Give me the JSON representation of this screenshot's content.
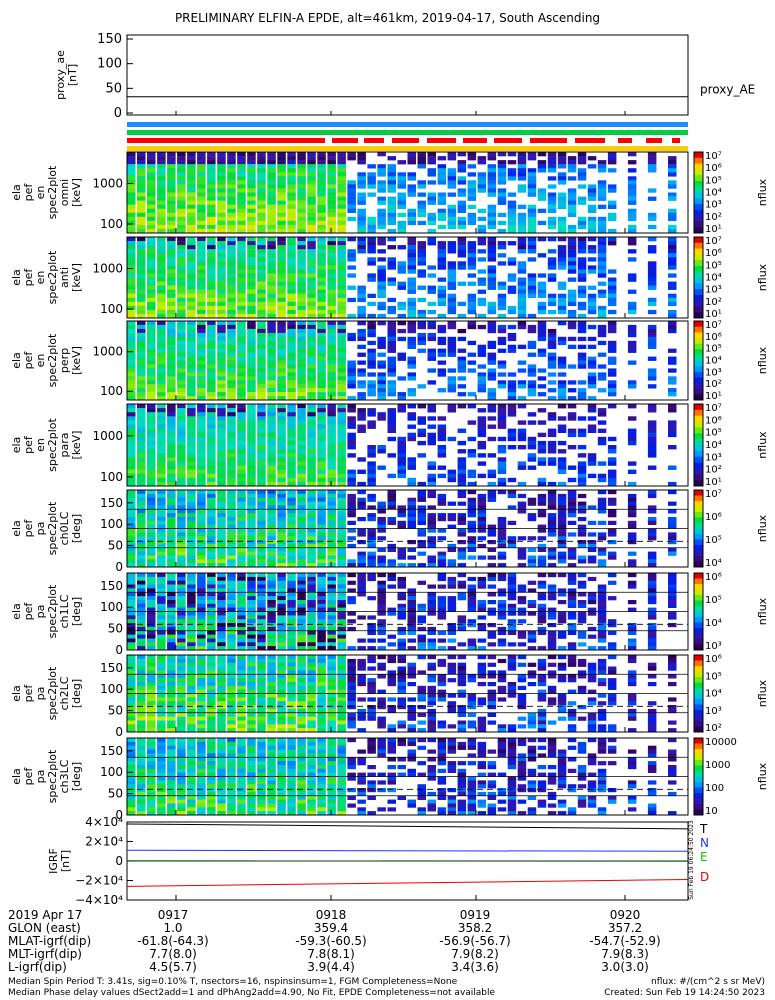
{
  "title": "PRELIMINARY ELFIN-A EPDE, alt=461km, 2019-04-17, South Ascending",
  "panels": {
    "proxy_ae": {
      "ylabel_lines": [
        "proxy_ae",
        "[nT]"
      ],
      "ticks": [
        "150",
        "100",
        "50",
        "0"
      ],
      "legend": "proxy_AE"
    },
    "spec_en": [
      {
        "ylabel_lines": [
          "ela",
          "pef",
          "en",
          "spec2plot",
          "omni",
          "[keV]"
        ]
      },
      {
        "ylabel_lines": [
          "ela",
          "pef",
          "en",
          "spec2plot",
          "anti",
          "[keV]"
        ]
      },
      {
        "ylabel_lines": [
          "ela",
          "pef",
          "en",
          "spec2plot",
          "perp",
          "[keV]"
        ]
      },
      {
        "ylabel_lines": [
          "ela",
          "pef",
          "en",
          "spec2plot",
          "para",
          "[keV]"
        ]
      }
    ],
    "energy_ticks": [
      "1000",
      "100"
    ],
    "spec_pa": [
      {
        "ylabel_lines": [
          "ela",
          "pef",
          "pa",
          "spec2plot",
          "ch0LC",
          "[deg]"
        ]
      },
      {
        "ylabel_lines": [
          "ela",
          "pef",
          "pa",
          "spec2plot",
          "ch1LC",
          "[deg]"
        ]
      },
      {
        "ylabel_lines": [
          "ela",
          "pef",
          "pa",
          "spec2plot",
          "ch2LC",
          "[deg]"
        ]
      },
      {
        "ylabel_lines": [
          "ela",
          "pef",
          "pa",
          "spec2plot",
          "ch3LC",
          "[deg]"
        ]
      }
    ],
    "pa_ticks": [
      "150",
      "100",
      "50",
      "0"
    ],
    "igrf": {
      "ylabel_lines": [
        "IGRF",
        "[nT]"
      ],
      "ticks": [
        "4×10⁴",
        "2×10⁴",
        "0",
        "−2×10⁴",
        "−4×10⁴"
      ],
      "legend": [
        "T",
        "N",
        "E",
        "D"
      ],
      "legend_colors": [
        "#000000",
        "#2233ff",
        "#00cc00",
        "#ee0000"
      ]
    }
  },
  "colorbars": {
    "label": "nflux",
    "bars": [
      {
        "ticks": [
          "10⁷",
          "10⁶",
          "10⁵",
          "10⁴",
          "10³",
          "10²",
          "10¹"
        ]
      },
      {
        "ticks": [
          "10⁷",
          "10⁶",
          "10⁵",
          "10⁴",
          "10³",
          "10²",
          "10¹"
        ]
      },
      {
        "ticks": [
          "10⁷",
          "10⁶",
          "10⁵",
          "10⁴",
          "10³",
          "10²",
          "10¹"
        ]
      },
      {
        "ticks": [
          "10⁷",
          "10⁶",
          "10⁵",
          "10⁴",
          "10³",
          "10²",
          "10¹"
        ]
      },
      {
        "ticks": [
          "10⁷",
          "10⁶",
          "10⁵",
          "10⁴"
        ]
      },
      {
        "ticks": [
          "10⁶",
          "10⁵",
          "10⁴",
          "10³"
        ]
      },
      {
        "ticks": [
          "10⁶",
          "10⁵",
          "10⁴",
          "10³",
          "10²"
        ]
      },
      {
        "ticks": [
          "10000",
          "1000",
          "100",
          "10"
        ]
      }
    ]
  },
  "stamp": "Sun Feb 19 06:24:50 2023",
  "orbit_table": {
    "rows": [
      {
        "label": "2019 Apr 17",
        "values": [
          "0917",
          "0918",
          "0919",
          "0920"
        ]
      },
      {
        "label": "GLON (east)",
        "values": [
          "1.0",
          "359.4",
          "358.2",
          "357.2"
        ]
      },
      {
        "label": "MLAT-igrf(dip)",
        "values": [
          "-61.8(-64.3)",
          "-59.3(-60.5)",
          "-56.9(-56.7)",
          "-54.7(-52.9)"
        ]
      },
      {
        "label": "MLT-igrf(dip)",
        "values": [
          "7.7(8.0)",
          "7.8(8.1)",
          "7.9(8.2)",
          "7.9(8.3)"
        ]
      },
      {
        "label": "L-igrf(dip)",
        "values": [
          "4.5(5.7)",
          "3.9(4.4)",
          "3.4(3.6)",
          "3.0(3.0)"
        ]
      }
    ]
  },
  "footer": {
    "line1": "Median Spin Period T: 3.41s, sig=0.10% T, nsectors=16, nspinsinsum=1, FGM Completeness=None",
    "line2": "Median Phase delay values dSect2add=1 and dPhAng2add=4.90, No Fit, EPDE Completeness=not available",
    "units": "nflux: #/(cm^2 s sr MeV)",
    "created": "Created: Sun Feb 19 14:24:50 2023"
  },
  "chart_data": {
    "type": "heatmap",
    "x_ticks": [
      "0917",
      "0918",
      "0919",
      "0920"
    ],
    "proxy_ae": {
      "ylim": [
        0,
        150
      ],
      "value": 33
    },
    "energy_range_keV": [
      60,
      6000
    ],
    "pitch_angle_range_deg": [
      0,
      180
    ],
    "igrf": {
      "ylim": [
        -40000,
        40000
      ],
      "series": [
        {
          "name": "T",
          "start": 38000,
          "end": 33000
        },
        {
          "name": "N",
          "start": 11000,
          "end": 10000
        },
        {
          "name": "E",
          "start": 300,
          "end": -200
        },
        {
          "name": "D",
          "start": -26000,
          "end": -19000
        }
      ]
    }
  }
}
